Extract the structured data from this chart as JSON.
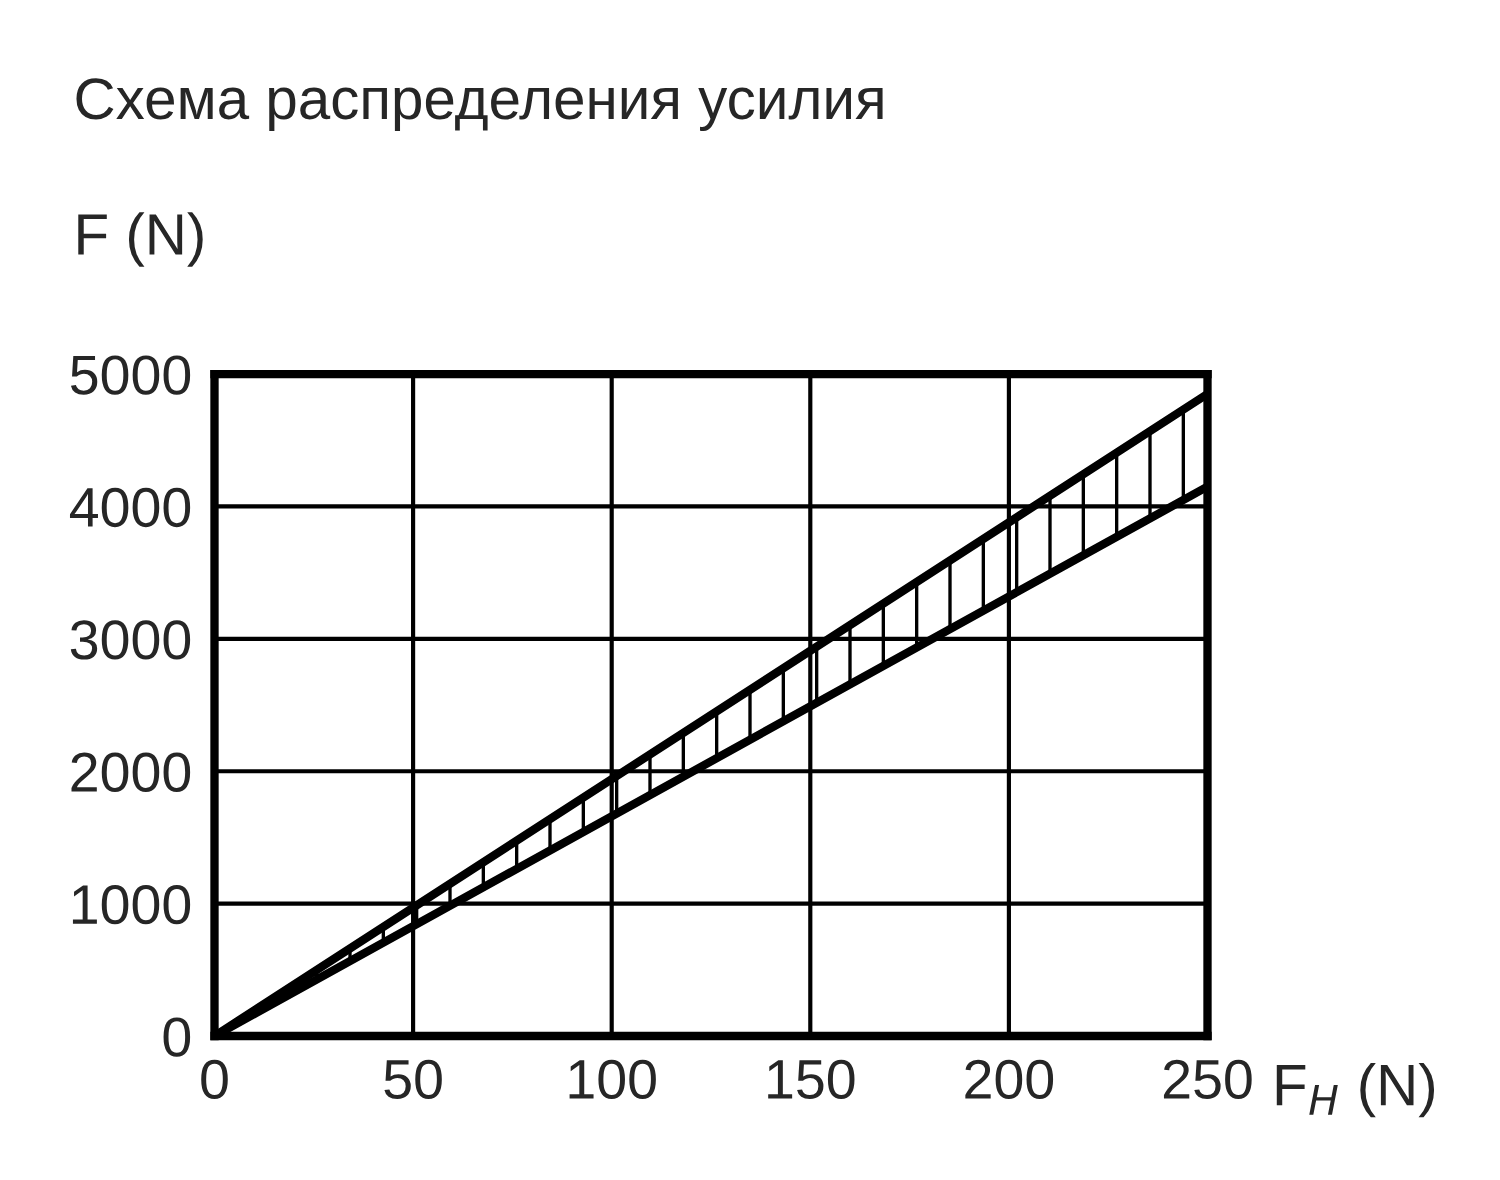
{
  "chart_data": {
    "type": "line",
    "title": "Схема распределения усилия",
    "xlabel": "F$_{H}$ (N)",
    "ylabel": "F (N)",
    "x": [
      0,
      250
    ],
    "series": [
      {
        "color": "#000000",
        "values": [
          0,
          4850
        ],
        "lower": [
          0,
          4150
        ],
        "upper": [
          0,
          4850
        ]
      },
      {
        "color": "#000000",
        "values": [
          0,
          4150
        ]
      }
    ],
    "xlim": [
      0,
      250
    ],
    "xticks": [
      0,
      50,
      100,
      150,
      200,
      250
    ],
    "ylim": [
      0,
      5000
    ],
    "yticks": [
      0,
      1000,
      2000,
      3000,
      4000,
      5000
    ],
    "grid": true,
    "legend": false,
    "marker": "none",
    "line_style": "solid"
  }
}
